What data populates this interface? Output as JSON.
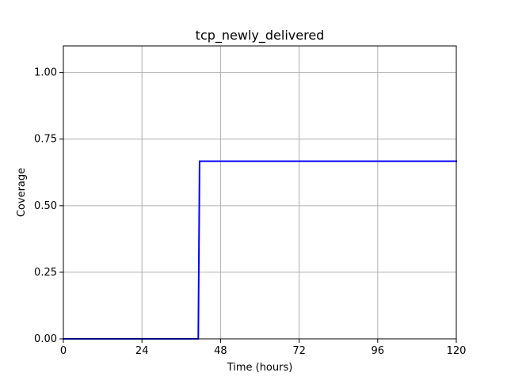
{
  "chart_data": {
    "type": "line",
    "title": "tcp_newly_delivered",
    "xlabel": "Time (hours)",
    "ylabel": "Coverage",
    "xlim": [
      0,
      120
    ],
    "ylim": [
      0,
      1.1
    ],
    "xticks": [
      0,
      24,
      48,
      72,
      96,
      120
    ],
    "yticks": [
      0.0,
      0.25,
      0.5,
      0.75,
      1.0
    ],
    "xtick_labels": [
      "0",
      "24",
      "48",
      "72",
      "96",
      "120"
    ],
    "ytick_labels": [
      "0.00",
      "0.25",
      "0.50",
      "0.75",
      "1.00"
    ],
    "grid": true,
    "series": [
      {
        "color": "#0000ff",
        "step": true,
        "x": [
          0,
          41.2,
          41.6,
          120
        ],
        "y": [
          0,
          0,
          0.667,
          0.667
        ]
      }
    ]
  }
}
